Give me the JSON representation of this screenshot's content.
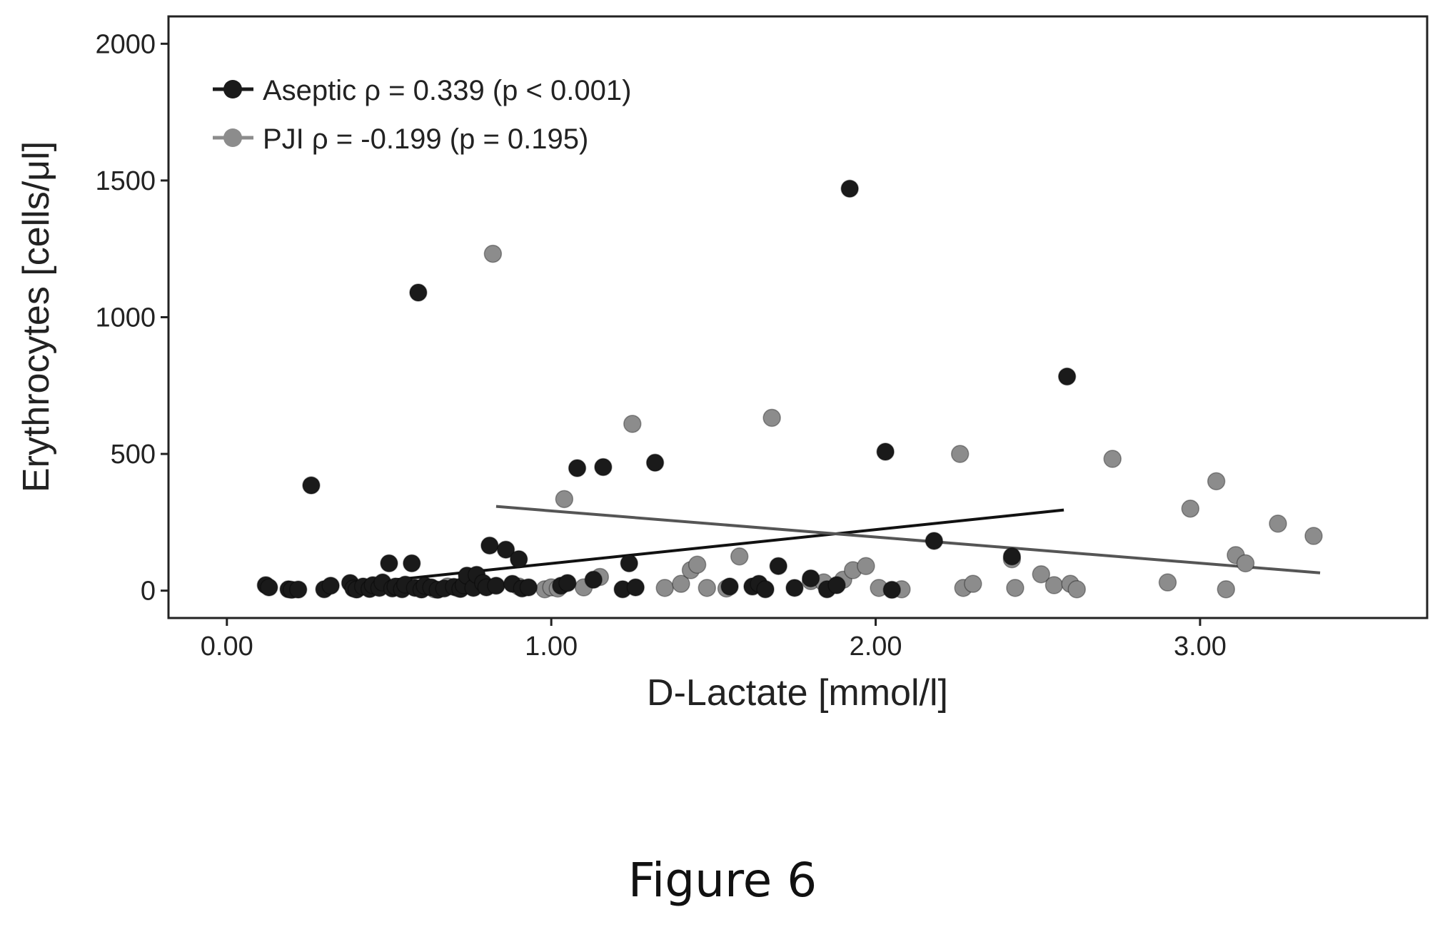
{
  "figure_caption": "Figure 6",
  "chart_data": {
    "type": "scatter",
    "xlabel": "D-Lactate [mmol/l]",
    "ylabel": "Erythrocytes [cells/μl]",
    "xlim": [
      -0.18,
      3.7
    ],
    "ylim": [
      -100,
      2100
    ],
    "x_ticks": [
      0,
      1,
      2,
      3
    ],
    "x_tick_labels": [
      "0.00",
      "1.00",
      "2.00",
      "3.00"
    ],
    "y_ticks": [
      0,
      500,
      1000,
      1500,
      2000
    ],
    "y_tick_labels": [
      "0",
      "500",
      "1000",
      "1500",
      "2000"
    ],
    "grid": false,
    "legend_position": "top-left",
    "colors": {
      "aseptic": "#1a1a1a",
      "pji": "#8c8c8c"
    },
    "series": [
      {
        "name": "Aseptic",
        "legend_label": "Aseptic  ρ = 0.339 (p < 0.001)",
        "trend": {
          "x": [
            0.52,
            2.58
          ],
          "y": [
            40,
            295
          ]
        },
        "points": [
          [
            0.12,
            20
          ],
          [
            0.13,
            12
          ],
          [
            0.19,
            5
          ],
          [
            0.2,
            3
          ],
          [
            0.22,
            4
          ],
          [
            0.26,
            385
          ],
          [
            0.3,
            5
          ],
          [
            0.32,
            18
          ],
          [
            0.38,
            28
          ],
          [
            0.39,
            8
          ],
          [
            0.4,
            4
          ],
          [
            0.42,
            15
          ],
          [
            0.44,
            6
          ],
          [
            0.45,
            20
          ],
          [
            0.47,
            10
          ],
          [
            0.48,
            30
          ],
          [
            0.5,
            100
          ],
          [
            0.51,
            8
          ],
          [
            0.52,
            15
          ],
          [
            0.54,
            5
          ],
          [
            0.55,
            22
          ],
          [
            0.57,
            100
          ],
          [
            0.58,
            10
          ],
          [
            0.59,
            1090
          ],
          [
            0.6,
            4
          ],
          [
            0.61,
            18
          ],
          [
            0.63,
            12
          ],
          [
            0.65,
            3
          ],
          [
            0.67,
            8
          ],
          [
            0.7,
            14
          ],
          [
            0.72,
            6
          ],
          [
            0.73,
            20
          ],
          [
            0.74,
            55
          ],
          [
            0.76,
            10
          ],
          [
            0.77,
            58
          ],
          [
            0.79,
            28
          ],
          [
            0.8,
            12
          ],
          [
            0.81,
            165
          ],
          [
            0.83,
            18
          ],
          [
            0.86,
            150
          ],
          [
            0.88,
            25
          ],
          [
            0.9,
            115
          ],
          [
            0.91,
            8
          ],
          [
            0.93,
            12
          ],
          [
            1.03,
            18
          ],
          [
            1.05,
            28
          ],
          [
            1.08,
            448
          ],
          [
            1.13,
            40
          ],
          [
            1.16,
            452
          ],
          [
            1.22,
            5
          ],
          [
            1.24,
            100
          ],
          [
            1.26,
            12
          ],
          [
            1.32,
            468
          ],
          [
            1.55,
            15
          ],
          [
            1.62,
            15
          ],
          [
            1.64,
            25
          ],
          [
            1.66,
            5
          ],
          [
            1.7,
            90
          ],
          [
            1.75,
            10
          ],
          [
            1.8,
            45
          ],
          [
            1.85,
            5
          ],
          [
            1.88,
            20
          ],
          [
            1.92,
            1470
          ],
          [
            2.03,
            508
          ],
          [
            2.05,
            3
          ],
          [
            2.18,
            182
          ],
          [
            2.42,
            125
          ],
          [
            2.59,
            783
          ]
        ]
      },
      {
        "name": "PJI",
        "legend_label": "PJI  ρ = -0.199 (p = 0.195)",
        "trend": {
          "x": [
            0.83,
            3.37
          ],
          "y": [
            308,
            65
          ]
        },
        "points": [
          [
            0.64,
            5
          ],
          [
            0.68,
            15
          ],
          [
            0.71,
            10
          ],
          [
            0.82,
            1232
          ],
          [
            0.9,
            15
          ],
          [
            0.98,
            5
          ],
          [
            1.0,
            12
          ],
          [
            1.02,
            8
          ],
          [
            1.04,
            335
          ],
          [
            1.1,
            12
          ],
          [
            1.15,
            50
          ],
          [
            1.25,
            610
          ],
          [
            1.35,
            10
          ],
          [
            1.4,
            25
          ],
          [
            1.43,
            75
          ],
          [
            1.45,
            95
          ],
          [
            1.48,
            10
          ],
          [
            1.54,
            8
          ],
          [
            1.58,
            125
          ],
          [
            1.68,
            632
          ],
          [
            1.8,
            35
          ],
          [
            1.84,
            30
          ],
          [
            1.9,
            40
          ],
          [
            1.93,
            75
          ],
          [
            1.97,
            90
          ],
          [
            2.01,
            10
          ],
          [
            2.08,
            5
          ],
          [
            2.26,
            500
          ],
          [
            2.27,
            10
          ],
          [
            2.3,
            25
          ],
          [
            2.42,
            115
          ],
          [
            2.43,
            10
          ],
          [
            2.51,
            60
          ],
          [
            2.55,
            20
          ],
          [
            2.6,
            25
          ],
          [
            2.62,
            5
          ],
          [
            2.73,
            482
          ],
          [
            2.9,
            30
          ],
          [
            2.97,
            300
          ],
          [
            3.05,
            400
          ],
          [
            3.08,
            5
          ],
          [
            3.11,
            130
          ],
          [
            3.14,
            100
          ],
          [
            3.24,
            245
          ],
          [
            3.35,
            200
          ]
        ]
      }
    ]
  }
}
